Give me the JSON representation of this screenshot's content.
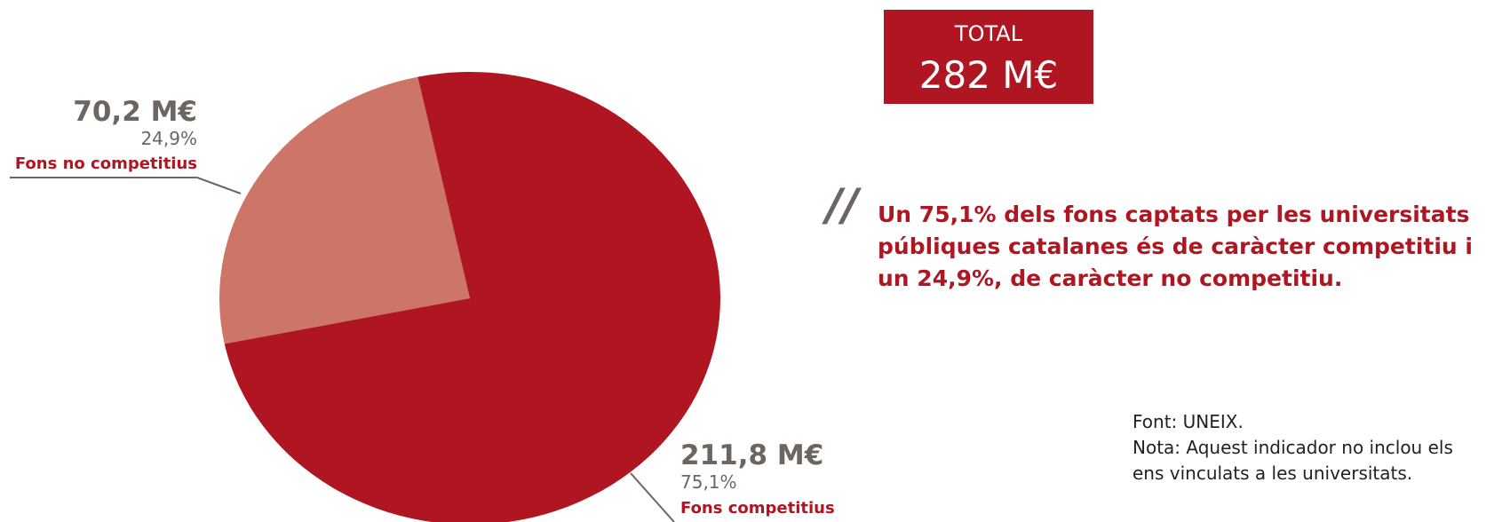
{
  "chart_data": {
    "type": "pie",
    "categories": [
      "Fons competitius",
      "Fons no competitius"
    ],
    "values": [
      211.8,
      70.2
    ],
    "value_labels": [
      "211,8 M€",
      "70,2 M€"
    ],
    "percent_labels": [
      "75,1%",
      "24,9%"
    ],
    "colors": [
      "#b01621",
      "#cd7566"
    ],
    "total_title": "TOTAL",
    "total_value": "282 M€",
    "quote_mark": "//",
    "quote": [
      "Un 75,1% dels fons captats per les universitats",
      "públiques catalanes és de caràcter competitiu i",
      "un 24,9%, de caràcter no competitiu."
    ],
    "notes": [
      "Font: UNEIX.",
      "Nota: Aquest indicador no inclou els",
      "ens vinculats a les universitats."
    ]
  }
}
